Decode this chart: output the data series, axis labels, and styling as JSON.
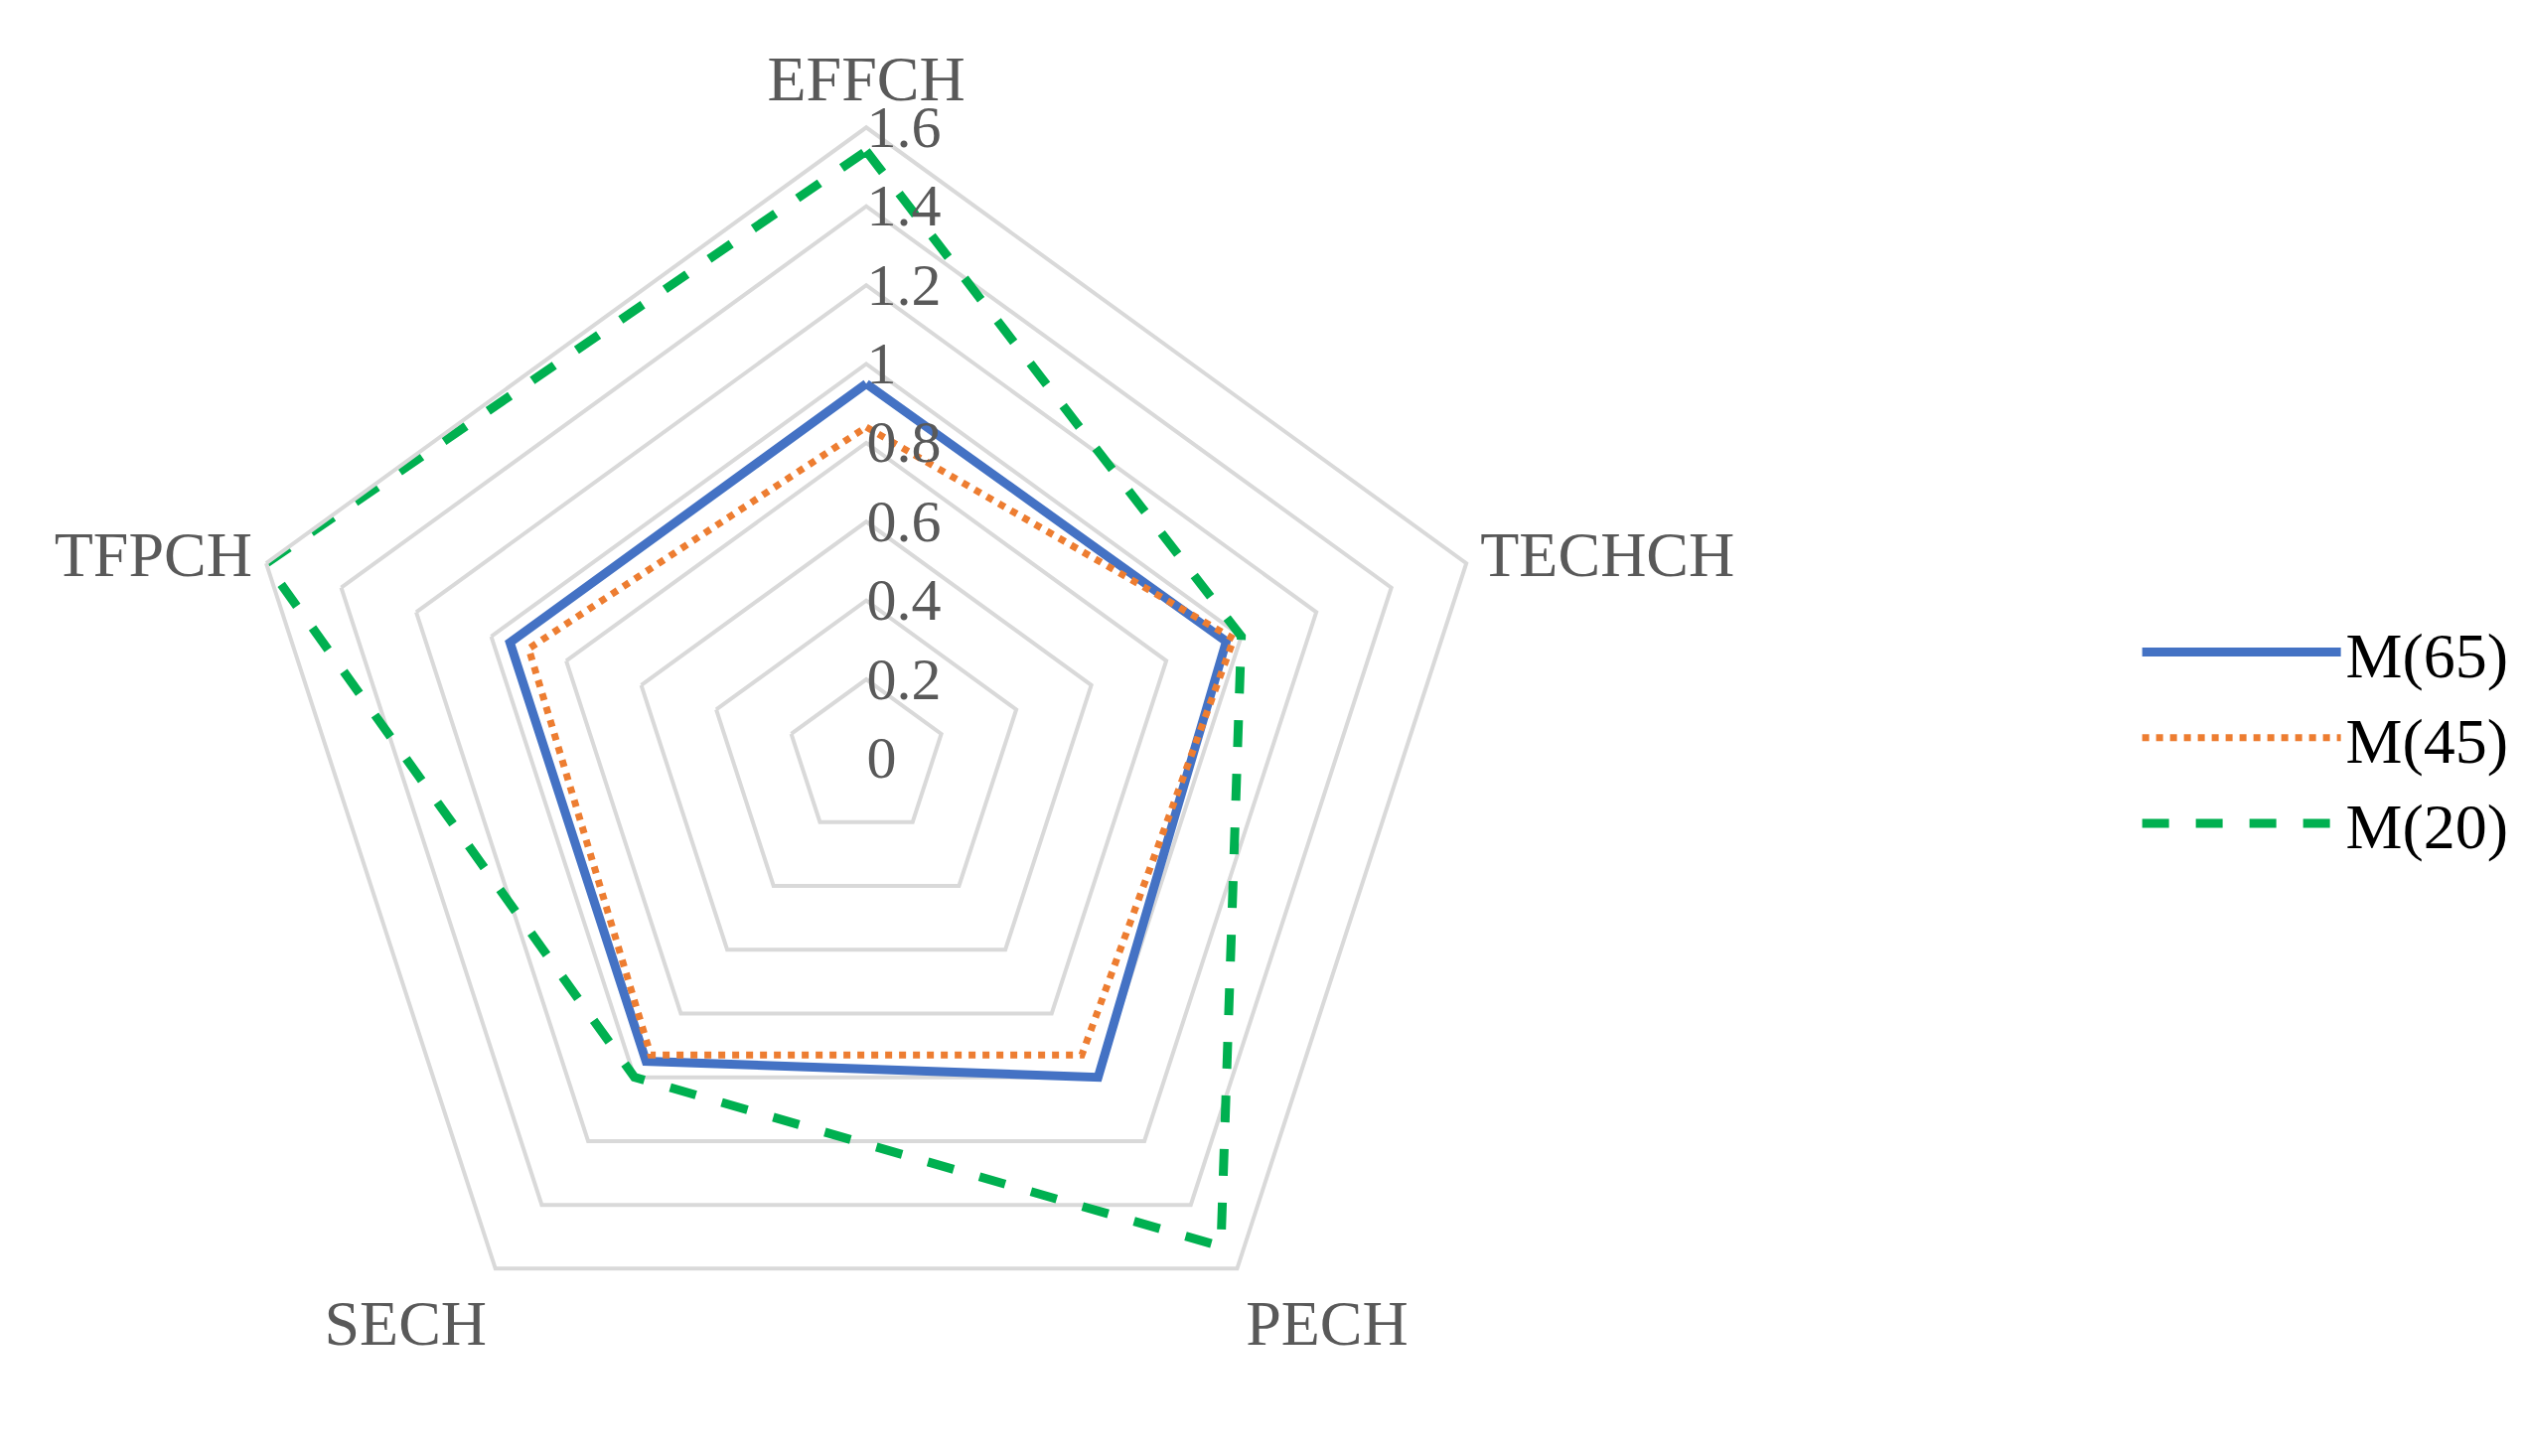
{
  "chart_data": {
    "type": "radar",
    "categories": [
      "EFFCH",
      "TECHCH",
      "PECH",
      "SECH",
      "TFPCH"
    ],
    "series": [
      {
        "name": "M(65)",
        "color": "#4472c4",
        "line_style": "solid",
        "values": [
          0.95,
          0.96,
          1.0,
          0.95,
          0.95
        ]
      },
      {
        "name": "M(45)",
        "color": "#ed7d31",
        "line_style": "dotted",
        "values": [
          0.84,
          0.98,
          0.93,
          0.93,
          0.9
        ]
      },
      {
        "name": "M(20)",
        "color": "#00b050",
        "line_style": "dashed",
        "values": [
          1.54,
          1.0,
          1.53,
          1.0,
          1.6
        ]
      }
    ],
    "ylim": [
      0,
      1.6
    ],
    "yticks": [
      0,
      0.2,
      0.4,
      0.6,
      0.8,
      1,
      1.2,
      1.4,
      1.6
    ],
    "grid": true,
    "legend": "right",
    "marker": "none"
  }
}
